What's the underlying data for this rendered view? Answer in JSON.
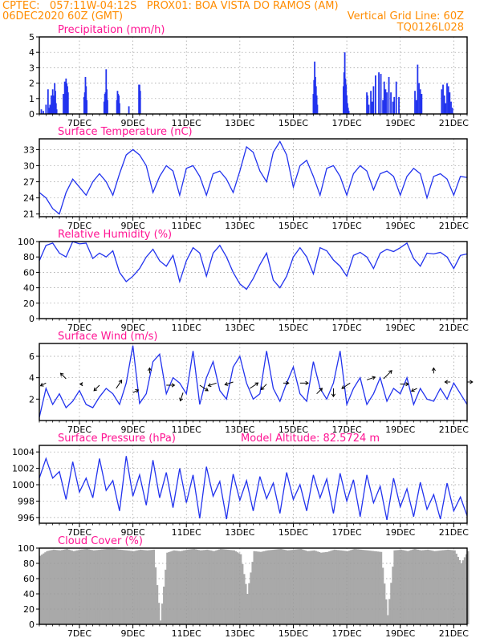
{
  "header": {
    "line1_left": "CPTEC:   057:11W-04:12S   PROX01: BOA VISTA DO RAMOS (AM)",
    "line2_left": "06DEC2020 60Z (GMT)",
    "line2_right": "Vertical Grid Line: 60Z",
    "line3_right": "TQ0126L028"
  },
  "colors": {
    "header": "#ff8c00",
    "title": "#ff1493",
    "series": "#2233ee",
    "cloud": "#a9a9a9",
    "grid": "#999999"
  },
  "chart_data": [
    {
      "type": "bar",
      "title": "Precipitation (mm/h)",
      "x_tick_labels": [
        "7DEC",
        "9DEC",
        "11DEC",
        "13DEC",
        "15DEC",
        "17DEC",
        "19DEC",
        "21DEC"
      ],
      "ylim": [
        0,
        5
      ],
      "y_ticks": [
        0,
        1,
        2,
        3,
        4,
        5
      ],
      "x": [
        0.3,
        0.6,
        1.0,
        1.3,
        1.5,
        1.6,
        1.7,
        1.8,
        1.9,
        2.0,
        2.1,
        2.2,
        2.3,
        2.4,
        2.5,
        2.6,
        3.6,
        3.8,
        3.9,
        4.0,
        4.1,
        4.2,
        4.3,
        6.7,
        6.8,
        6.9,
        7.0,
        7.1,
        9.7,
        9.8,
        9.9,
        10.0,
        10.1,
        10.2,
        11.6,
        11.7,
        11.8,
        11.9,
        12.0,
        13.4,
        14.9,
        15.0,
        15.1,
        41.0,
        41.1,
        41.2,
        41.3,
        41.4,
        41.5,
        41.6,
        45.5,
        45.6,
        45.7,
        45.8,
        45.9,
        46.0,
        46.1,
        46.2,
        46.3,
        49.0,
        49.1,
        49.3,
        49.6,
        49.8,
        50.0,
        50.3,
        50.8,
        51.1,
        51.4,
        51.6,
        51.8,
        52.0,
        52.3,
        52.6,
        52.9,
        53.1,
        53.4,
        53.8,
        56.2,
        56.4,
        56.6,
        56.8,
        57.0,
        57.2,
        60.2,
        60.4,
        60.6,
        60.8,
        61.0,
        61.2,
        61.4,
        61.6,
        61.8
      ],
      "values": [
        0.3,
        0.2,
        0.6,
        1.6,
        0.4,
        0.6,
        0.5,
        1.2,
        0.7,
        1.6,
        1.2,
        1.1,
        2.0,
        1.5,
        0.7,
        0.3,
        1.3,
        2.1,
        1.6,
        2.3,
        2.0,
        1.8,
        1.4,
        1.1,
        1.4,
        2.4,
        1.8,
        0.9,
        0.8,
        1.3,
        1.4,
        2.9,
        1.6,
        0.9,
        0.9,
        1.5,
        1.3,
        1.2,
        0.7,
        0.5,
        1.9,
        1.9,
        1.5,
        1.3,
        2.2,
        3.4,
        2.4,
        1.8,
        1.2,
        0.6,
        1.8,
        2.7,
        4.0,
        2.3,
        1.9,
        1.2,
        0.7,
        0.4,
        0.2,
        1.4,
        1.2,
        0.6,
        1.5,
        0.8,
        1.8,
        2.5,
        2.7,
        2.6,
        0.9,
        2.1,
        1.6,
        1.4,
        2.4,
        1.4,
        0.8,
        1.1,
        2.1,
        1.1,
        1.5,
        0.9,
        3.2,
        2.0,
        1.6,
        1.3,
        1.6,
        1.9,
        1.2,
        0.7,
        2.0,
        1.8,
        1.4,
        0.8,
        0.4
      ]
    },
    {
      "type": "line",
      "title": "Surface Temperature (nC)",
      "x_tick_labels": [
        "7DEC",
        "9DEC",
        "11DEC",
        "13DEC",
        "15DEC",
        "17DEC",
        "19DEC",
        "21DEC"
      ],
      "ylim": [
        20.5,
        35
      ],
      "y_ticks": [
        21,
        24,
        27,
        30,
        33
      ],
      "x": [
        0,
        1,
        2,
        3,
        4,
        5,
        6,
        7,
        8,
        9,
        10,
        11,
        12,
        13,
        14,
        15,
        16,
        17,
        18,
        19,
        20,
        21,
        22,
        23,
        24,
        25,
        26,
        27,
        28,
        29,
        30,
        31,
        32,
        33,
        34,
        35,
        36,
        37,
        38,
        39,
        40,
        41,
        42,
        43,
        44,
        45,
        46,
        47,
        48,
        49,
        50,
        51,
        52,
        53,
        54,
        55,
        56,
        57,
        58,
        59,
        60,
        61,
        62,
        63,
        64
      ],
      "values": [
        25,
        24,
        22,
        21,
        25,
        27.5,
        26,
        24.5,
        27,
        28.5,
        27,
        24.5,
        28.5,
        32,
        33,
        32,
        30,
        25,
        28,
        30,
        29,
        24.5,
        29.5,
        30,
        28,
        24.5,
        28.5,
        29,
        27.5,
        25,
        29,
        33.5,
        32.5,
        29,
        27,
        32.5,
        34.5,
        32,
        26,
        30,
        31,
        28,
        24.5,
        29.5,
        30,
        28,
        24.5,
        28.5,
        30,
        29,
        25.5,
        28.5,
        29,
        28,
        24.5,
        28,
        29.5,
        28.5,
        24,
        28,
        28.5,
        27.5,
        24.5,
        28,
        27.8
      ]
    },
    {
      "type": "line",
      "title": "Relative Humidity (%)",
      "x_tick_labels": [
        "7DEC",
        "9DEC",
        "11DEC",
        "13DEC",
        "15DEC",
        "17DEC",
        "19DEC",
        "21DEC"
      ],
      "ylim": [
        0,
        100
      ],
      "y_ticks": [
        0,
        20,
        40,
        60,
        80,
        100
      ],
      "x": [
        0,
        1,
        2,
        3,
        4,
        5,
        6,
        7,
        8,
        9,
        10,
        11,
        12,
        13,
        14,
        15,
        16,
        17,
        18,
        19,
        20,
        21,
        22,
        23,
        24,
        25,
        26,
        27,
        28,
        29,
        30,
        31,
        32,
        33,
        34,
        35,
        36,
        37,
        38,
        39,
        40,
        41,
        42,
        43,
        44,
        45,
        46,
        47,
        48,
        49,
        50,
        51,
        52,
        53,
        54,
        55,
        56,
        57,
        58,
        59,
        60,
        61,
        62,
        63,
        64
      ],
      "values": [
        75,
        95,
        98,
        85,
        80,
        100,
        97,
        98,
        78,
        85,
        80,
        88,
        60,
        48,
        55,
        65,
        80,
        90,
        75,
        68,
        82,
        48,
        75,
        92,
        85,
        55,
        85,
        95,
        80,
        60,
        45,
        38,
        52,
        70,
        85,
        50,
        40,
        55,
        80,
        92,
        80,
        58,
        92,
        88,
        76,
        68,
        55,
        82,
        86,
        80,
        65,
        85,
        90,
        87,
        92,
        98,
        78,
        68,
        85,
        84,
        86,
        80,
        65,
        82,
        84
      ]
    },
    {
      "type": "line",
      "title": "Surface Wind (m/s)",
      "x_tick_labels": [
        "7DEC",
        "9DEC",
        "11DEC",
        "13DEC",
        "15DEC",
        "17DEC",
        "19DEC",
        "21DEC"
      ],
      "ylim": [
        0,
        7.2
      ],
      "y_ticks": [
        2,
        4,
        6
      ],
      "x": [
        0,
        1,
        2,
        3,
        4,
        5,
        6,
        7,
        8,
        9,
        10,
        11,
        12,
        13,
        14,
        15,
        16,
        17,
        18,
        19,
        20,
        21,
        22,
        23,
        24,
        25,
        26,
        27,
        28,
        29,
        30,
        31,
        32,
        33,
        34,
        35,
        36,
        37,
        38,
        39,
        40,
        41,
        42,
        43,
        44,
        45,
        46,
        47,
        48,
        49,
        50,
        51,
        52,
        53,
        54,
        55,
        56,
        57,
        58,
        59,
        60,
        61,
        62,
        63,
        64
      ],
      "values": [
        0.3,
        3,
        1.5,
        2.5,
        1.2,
        1.8,
        2.8,
        1.5,
        1.2,
        2.2,
        3,
        2.5,
        1.5,
        3.5,
        7,
        1.6,
        2.5,
        5.5,
        6.2,
        2.5,
        4,
        3.5,
        2.5,
        6.5,
        1.5,
        4,
        5.5,
        2.8,
        2,
        5,
        6,
        3.5,
        2,
        2.5,
        6.5,
        3,
        1.8,
        3.5,
        5,
        2.5,
        1.8,
        5.5,
        3,
        2,
        3.5,
        6.5,
        1.5,
        3,
        4,
        1.5,
        2.5,
        4,
        1.8,
        3,
        2.5,
        4,
        1.5,
        3,
        2,
        1.8,
        3,
        2,
        3.5,
        2.5,
        1.5
      ],
      "vectors": [
        [
          1.0,
          3.5,
          -2,
          -1
        ],
        [
          4.0,
          3.9,
          -2,
          2
        ],
        [
          6.5,
          3.4,
          -1,
          0
        ],
        [
          9.0,
          3.3,
          -2,
          -2
        ],
        [
          11.5,
          3.0,
          2,
          3
        ],
        [
          14.0,
          2.6,
          2,
          1
        ],
        [
          16.5,
          4.4,
          0,
          2
        ],
        [
          19.0,
          3.3,
          3,
          0
        ],
        [
          21.5,
          2.6,
          -1,
          -3
        ],
        [
          24.0,
          3.3,
          3,
          -2
        ],
        [
          26.5,
          3.5,
          -3,
          -1
        ],
        [
          29.0,
          3.6,
          -3,
          -1
        ],
        [
          31.5,
          3.0,
          3,
          2
        ],
        [
          34.0,
          3.4,
          -2,
          -2
        ],
        [
          36.5,
          3.5,
          2,
          0
        ],
        [
          39.0,
          3.5,
          3,
          0
        ],
        [
          41.5,
          2.5,
          2,
          2
        ],
        [
          44.0,
          3.0,
          0,
          -3
        ],
        [
          46.5,
          3.5,
          -3,
          -2
        ],
        [
          49.0,
          3.8,
          3,
          1
        ],
        [
          51.5,
          3.9,
          3,
          3
        ],
        [
          54.0,
          3.4,
          3,
          0
        ],
        [
          56.5,
          3.0,
          -2,
          -1
        ],
        [
          59.0,
          4.4,
          0,
          2
        ],
        [
          61.5,
          3.6,
          -2,
          0
        ],
        [
          64.0,
          3.6,
          2,
          0
        ]
      ]
    },
    {
      "type": "line",
      "title": "Surface Pressure (hPa)",
      "annotation": "Model Altitude: 82.5724 m",
      "x_tick_labels": [
        "7DEC",
        "9DEC",
        "11DEC",
        "13DEC",
        "15DEC",
        "17DEC",
        "19DEC",
        "21DEC"
      ],
      "ylim": [
        995.3,
        1004.8
      ],
      "y_ticks": [
        996,
        998,
        1000,
        1002,
        1004
      ],
      "x": [
        0,
        1,
        2,
        3,
        4,
        5,
        6,
        7,
        8,
        9,
        10,
        11,
        12,
        13,
        14,
        15,
        16,
        17,
        18,
        19,
        20,
        21,
        22,
        23,
        24,
        25,
        26,
        27,
        28,
        29,
        30,
        31,
        32,
        33,
        34,
        35,
        36,
        37,
        38,
        39,
        40,
        41,
        42,
        43,
        44,
        45,
        46,
        47,
        48,
        49,
        50,
        51,
        52,
        53,
        54,
        55,
        56,
        57,
        58,
        59,
        60,
        61,
        62,
        63,
        64
      ],
      "values": [
        1000.8,
        1003.2,
        1000.8,
        1001.6,
        998.2,
        1002.8,
        999.1,
        1000.8,
        998.4,
        1003.2,
        999.3,
        1000.5,
        996.8,
        1003.5,
        998.6,
        1001.2,
        997.5,
        1003.0,
        998.4,
        1001.5,
        997.2,
        1002.0,
        997.8,
        1001.2,
        995.9,
        1002.2,
        998.6,
        1000.4,
        995.8,
        1001.3,
        998.1,
        1000.5,
        996.8,
        1001.0,
        998.3,
        1000.2,
        996.5,
        1001.5,
        998.2,
        1000.0,
        996.8,
        1001.2,
        998.4,
        1000.7,
        996.5,
        1001.4,
        998.0,
        1000.6,
        996.1,
        1001.2,
        997.8,
        999.8,
        995.7,
        1000.8,
        997.3,
        999.5,
        996.1,
        1000.3,
        997.0,
        998.8,
        995.8,
        1000.2,
        996.8,
        998.5,
        996.2
      ]
    },
    {
      "type": "area",
      "title": "Cloud Cover (%)",
      "x_tick_labels": [
        "7DEC",
        "9DEC",
        "11DEC",
        "13DEC",
        "15DEC",
        "17DEC",
        "19DEC",
        "21DEC"
      ],
      "ylim": [
        0,
        100
      ],
      "y_ticks": [
        0,
        20,
        40,
        60,
        80,
        100
      ],
      "x": [
        0,
        1,
        2,
        3,
        4,
        5,
        6,
        7,
        8,
        9,
        10,
        11,
        12,
        13,
        14,
        15,
        16,
        17,
        18,
        19,
        20,
        21,
        22,
        23,
        24,
        25,
        26,
        27,
        28,
        29,
        30,
        31,
        32,
        33,
        34,
        35,
        36,
        37,
        38,
        39,
        40,
        41,
        42,
        43,
        44,
        45,
        46,
        47,
        48,
        49,
        50,
        51,
        52,
        53,
        54,
        55,
        56,
        57,
        58,
        59,
        60,
        61,
        62,
        63,
        64
      ],
      "values": [
        90,
        96,
        98,
        97,
        99,
        96,
        98,
        99,
        97,
        98,
        99,
        99,
        98,
        97,
        96,
        98,
        97,
        98,
        5,
        94,
        97,
        96,
        98,
        99,
        97,
        98,
        96,
        99,
        98,
        97,
        92,
        40,
        96,
        95,
        97,
        98,
        99,
        97,
        98,
        99,
        96,
        97,
        94,
        95,
        98,
        97,
        96,
        99,
        98,
        97,
        96,
        95,
        12,
        97,
        98,
        96,
        99,
        97,
        98,
        96,
        97,
        98,
        97,
        80,
        96
      ]
    }
  ]
}
